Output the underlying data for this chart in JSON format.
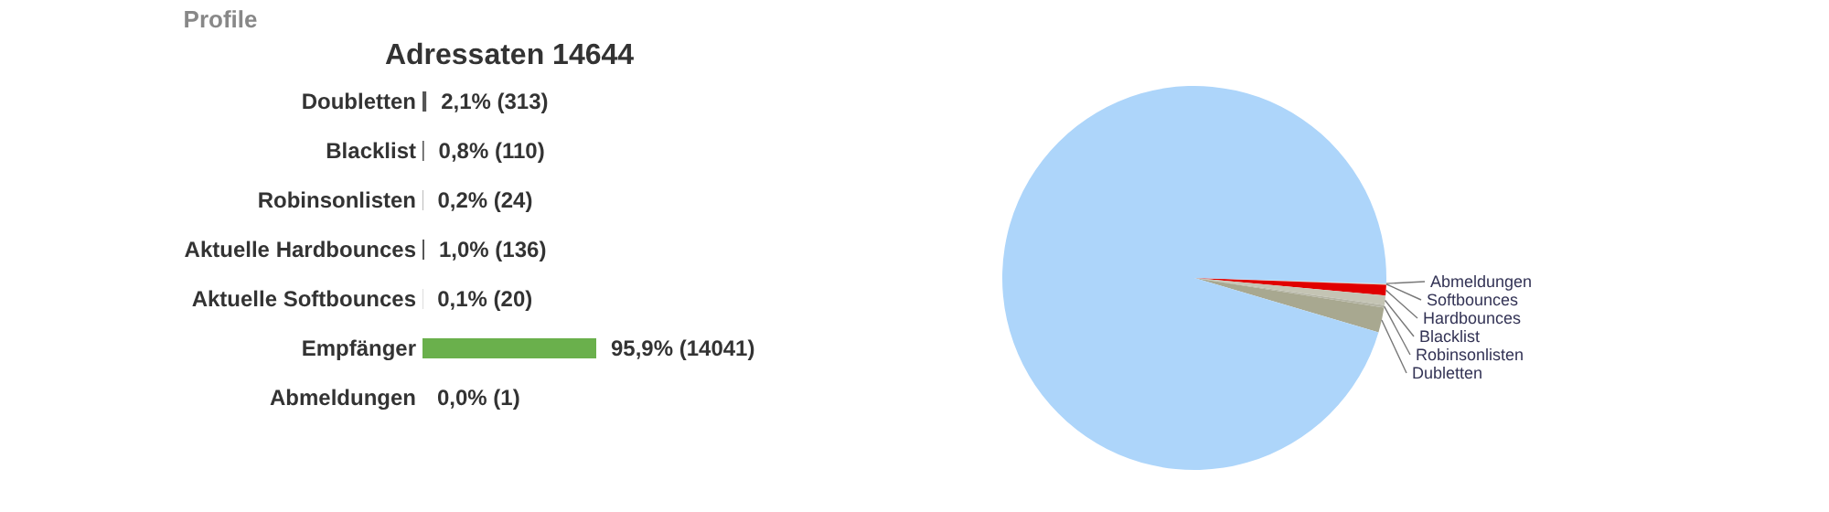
{
  "chart_data": [
    {
      "type": "bar",
      "orientation": "horizontal",
      "title": "Profile",
      "subtitle": "Adressaten 14644",
      "categories": [
        "Doubletten",
        "Blacklist",
        "Robinsonlisten",
        "Aktuelle Hardbounces",
        "Aktuelle Softbounces",
        "Empfänger",
        "Abmeldungen"
      ],
      "values": [
        2.1,
        0.8,
        0.2,
        1.0,
        0.1,
        95.9,
        0.0
      ],
      "colors": [
        "#555555",
        "#555555",
        "#555555",
        "#555555",
        "#555555",
        "#6ab04c",
        "#555555"
      ],
      "value_labels": [
        "2,1% (313)",
        "0,8% (110)",
        "0,2% (24)",
        "1,0% (136)",
        "0,1% (20)",
        "95,9% (14041)",
        "0,0% (1)"
      ]
    },
    {
      "type": "pie",
      "categories": [
        "Softbounces",
        "Hardbounces",
        "Blacklist",
        "Robinsonlisten",
        "Dubletten",
        null,
        "Abmeldungen"
      ],
      "values": [
        0.1,
        0.9,
        0.8,
        0.2,
        2.1,
        95.9,
        0.0
      ],
      "colors": [
        "#d4d4c4",
        "#e00000",
        "#c4c4b4",
        "#b4b4a4",
        "#a8a890",
        "#add5fa",
        "#f2c4b4"
      ]
    }
  ]
}
